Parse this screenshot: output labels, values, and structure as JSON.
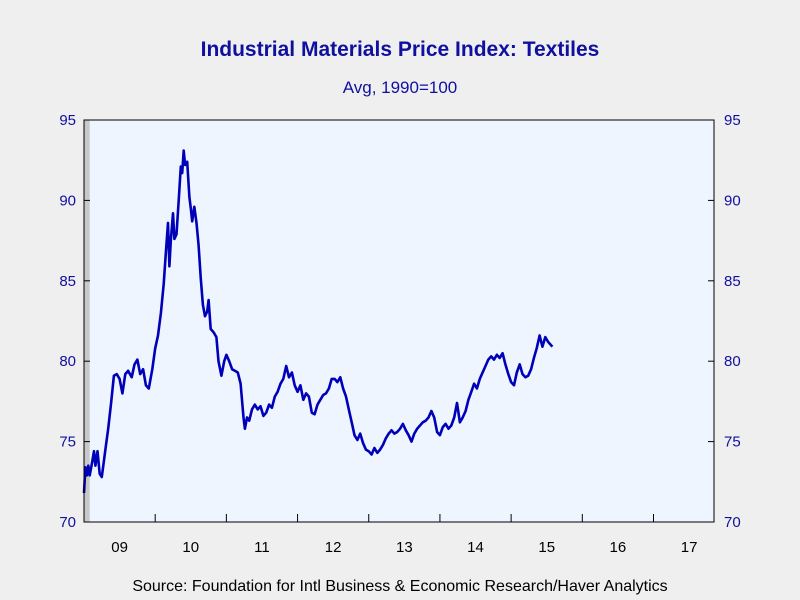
{
  "chart_data": {
    "type": "line",
    "title": "Industrial Materials Price Index: Textiles",
    "subtitle": "Avg, 1990=100",
    "source": "Source:  Foundation for Intl Business & Economic Research/Haver Analytics",
    "ylim": [
      70,
      95
    ],
    "yticks": [
      70,
      75,
      80,
      85,
      90,
      95
    ],
    "xlim": [
      2009.0,
      2017.85
    ],
    "x_tick_labels": [
      "09",
      "10",
      "11",
      "12",
      "13",
      "14",
      "15",
      "16",
      "17"
    ],
    "recession_band": [
      2009.0,
      2009.08
    ],
    "line_color": "#0000b8",
    "plot_background": "#eef5ff",
    "grid": false,
    "series": [
      {
        "points": [
          [
            2009.0,
            71.8
          ],
          [
            2009.02,
            73.4
          ],
          [
            2009.04,
            72.9
          ],
          [
            2009.06,
            73.5
          ],
          [
            2009.08,
            72.9
          ],
          [
            2009.11,
            73.6
          ],
          [
            2009.14,
            74.4
          ],
          [
            2009.16,
            73.5
          ],
          [
            2009.19,
            74.4
          ],
          [
            2009.22,
            73.0
          ],
          [
            2009.25,
            72.8
          ],
          [
            2009.3,
            74.5
          ],
          [
            2009.34,
            75.8
          ],
          [
            2009.38,
            77.4
          ],
          [
            2009.42,
            79.1
          ],
          [
            2009.46,
            79.2
          ],
          [
            2009.5,
            78.9
          ],
          [
            2009.54,
            78.0
          ],
          [
            2009.58,
            79.2
          ],
          [
            2009.62,
            79.4
          ],
          [
            2009.67,
            79.0
          ],
          [
            2009.71,
            79.8
          ],
          [
            2009.75,
            80.1
          ],
          [
            2009.79,
            79.2
          ],
          [
            2009.83,
            79.5
          ],
          [
            2009.87,
            78.5
          ],
          [
            2009.91,
            78.3
          ],
          [
            2009.96,
            79.5
          ],
          [
            2010.0,
            80.8
          ],
          [
            2010.04,
            81.6
          ],
          [
            2010.08,
            83.0
          ],
          [
            2010.12,
            84.8
          ],
          [
            2010.15,
            86.8
          ],
          [
            2010.18,
            88.6
          ],
          [
            2010.2,
            85.9
          ],
          [
            2010.22,
            87.5
          ],
          [
            2010.25,
            89.2
          ],
          [
            2010.27,
            87.6
          ],
          [
            2010.3,
            87.9
          ],
          [
            2010.33,
            90.0
          ],
          [
            2010.36,
            92.1
          ],
          [
            2010.38,
            91.7
          ],
          [
            2010.4,
            93.1
          ],
          [
            2010.42,
            92.2
          ],
          [
            2010.45,
            92.4
          ],
          [
            2010.48,
            90.2
          ],
          [
            2010.5,
            89.5
          ],
          [
            2010.52,
            88.7
          ],
          [
            2010.55,
            89.6
          ],
          [
            2010.58,
            88.6
          ],
          [
            2010.61,
            87.2
          ],
          [
            2010.64,
            85.2
          ],
          [
            2010.67,
            83.5
          ],
          [
            2010.7,
            82.8
          ],
          [
            2010.73,
            83.1
          ],
          [
            2010.75,
            83.8
          ],
          [
            2010.78,
            82.0
          ],
          [
            2010.82,
            81.8
          ],
          [
            2010.86,
            81.5
          ],
          [
            2010.89,
            80.0
          ],
          [
            2010.93,
            79.1
          ],
          [
            2010.97,
            80.0
          ],
          [
            2011.0,
            80.4
          ],
          [
            2011.04,
            80.0
          ],
          [
            2011.08,
            79.5
          ],
          [
            2011.12,
            79.4
          ],
          [
            2011.16,
            79.3
          ],
          [
            2011.2,
            78.6
          ],
          [
            2011.24,
            76.5
          ],
          [
            2011.26,
            75.8
          ],
          [
            2011.29,
            76.5
          ],
          [
            2011.32,
            76.3
          ],
          [
            2011.36,
            77.0
          ],
          [
            2011.4,
            77.3
          ],
          [
            2011.44,
            77.0
          ],
          [
            2011.48,
            77.2
          ],
          [
            2011.52,
            76.6
          ],
          [
            2011.56,
            76.8
          ],
          [
            2011.6,
            77.3
          ],
          [
            2011.64,
            77.1
          ],
          [
            2011.68,
            77.8
          ],
          [
            2011.72,
            78.1
          ],
          [
            2011.76,
            78.6
          ],
          [
            2011.8,
            78.9
          ],
          [
            2011.84,
            79.7
          ],
          [
            2011.88,
            79.0
          ],
          [
            2011.92,
            79.3
          ],
          [
            2011.96,
            78.5
          ],
          [
            2012.0,
            78.1
          ],
          [
            2012.04,
            78.5
          ],
          [
            2012.08,
            77.6
          ],
          [
            2012.12,
            78.0
          ],
          [
            2012.16,
            77.8
          ],
          [
            2012.2,
            76.8
          ],
          [
            2012.24,
            76.7
          ],
          [
            2012.28,
            77.3
          ],
          [
            2012.32,
            77.6
          ],
          [
            2012.36,
            77.9
          ],
          [
            2012.4,
            78.0
          ],
          [
            2012.44,
            78.3
          ],
          [
            2012.48,
            78.9
          ],
          [
            2012.52,
            78.9
          ],
          [
            2012.56,
            78.7
          ],
          [
            2012.6,
            79.0
          ],
          [
            2012.64,
            78.3
          ],
          [
            2012.68,
            77.8
          ],
          [
            2012.72,
            77.0
          ],
          [
            2012.76,
            76.2
          ],
          [
            2012.8,
            75.4
          ],
          [
            2012.84,
            75.1
          ],
          [
            2012.88,
            75.5
          ],
          [
            2012.92,
            74.9
          ],
          [
            2012.96,
            74.5
          ],
          [
            2013.0,
            74.4
          ],
          [
            2013.04,
            74.2
          ],
          [
            2013.08,
            74.6
          ],
          [
            2013.12,
            74.3
          ],
          [
            2013.16,
            74.5
          ],
          [
            2013.2,
            74.8
          ],
          [
            2013.24,
            75.2
          ],
          [
            2013.28,
            75.5
          ],
          [
            2013.32,
            75.7
          ],
          [
            2013.36,
            75.5
          ],
          [
            2013.4,
            75.6
          ],
          [
            2013.44,
            75.8
          ],
          [
            2013.48,
            76.1
          ],
          [
            2013.52,
            75.7
          ],
          [
            2013.56,
            75.4
          ],
          [
            2013.6,
            75.0
          ],
          [
            2013.64,
            75.5
          ],
          [
            2013.68,
            75.8
          ],
          [
            2013.72,
            76.0
          ],
          [
            2013.76,
            76.2
          ],
          [
            2013.8,
            76.3
          ],
          [
            2013.84,
            76.5
          ],
          [
            2013.88,
            76.9
          ],
          [
            2013.92,
            76.5
          ],
          [
            2013.96,
            75.6
          ],
          [
            2014.0,
            75.4
          ],
          [
            2014.04,
            75.9
          ],
          [
            2014.08,
            76.1
          ],
          [
            2014.12,
            75.8
          ],
          [
            2014.16,
            76.0
          ],
          [
            2014.2,
            76.5
          ],
          [
            2014.24,
            77.4
          ],
          [
            2014.28,
            76.2
          ],
          [
            2014.32,
            76.5
          ],
          [
            2014.36,
            76.9
          ],
          [
            2014.4,
            77.6
          ],
          [
            2014.44,
            78.1
          ],
          [
            2014.48,
            78.6
          ],
          [
            2014.52,
            78.3
          ],
          [
            2014.56,
            78.9
          ],
          [
            2014.6,
            79.3
          ],
          [
            2014.64,
            79.7
          ],
          [
            2014.68,
            80.1
          ],
          [
            2014.72,
            80.3
          ],
          [
            2014.76,
            80.1
          ],
          [
            2014.8,
            80.4
          ],
          [
            2014.84,
            80.2
          ],
          [
            2014.88,
            80.5
          ],
          [
            2014.92,
            79.8
          ],
          [
            2014.96,
            79.2
          ],
          [
            2015.0,
            78.7
          ],
          [
            2015.04,
            78.5
          ],
          [
            2015.08,
            79.3
          ],
          [
            2015.12,
            79.8
          ],
          [
            2015.16,
            79.2
          ],
          [
            2015.2,
            79.0
          ],
          [
            2015.24,
            79.1
          ],
          [
            2015.28,
            79.5
          ],
          [
            2015.32,
            80.2
          ],
          [
            2015.36,
            80.8
          ],
          [
            2015.4,
            81.6
          ],
          [
            2015.44,
            80.9
          ],
          [
            2015.48,
            81.5
          ],
          [
            2015.52,
            81.2
          ],
          [
            2015.56,
            81.0
          ],
          [
            2015.58,
            80.9
          ]
        ]
      }
    ]
  }
}
